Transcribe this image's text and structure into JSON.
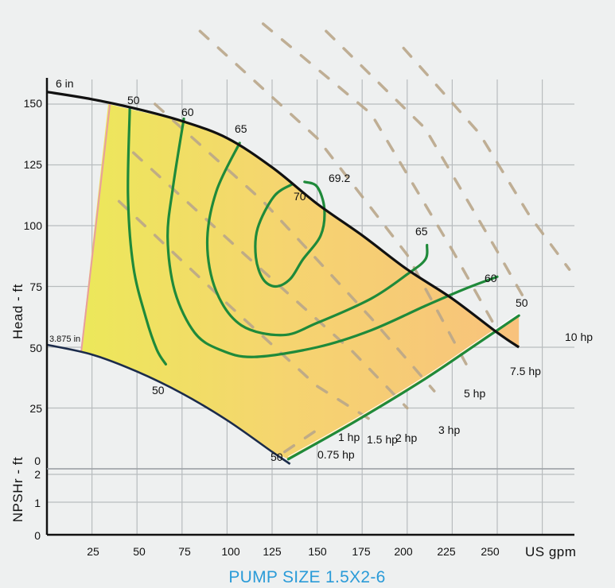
{
  "chart_data": {
    "type": "line",
    "title": "PUMP SIZE 1.5X2-6",
    "xlabel": "US gpm",
    "ylabel": "Head - ft",
    "ylabel2": "NPSHr - ft",
    "xlim": [
      0,
      280
    ],
    "ylim": [
      0,
      160
    ],
    "npsh_ylim": [
      0,
      2
    ],
    "grid": true,
    "x_ticks": [
      "25",
      "50",
      "75",
      "100",
      "125",
      "150",
      "175",
      "200",
      "225",
      "250"
    ],
    "y_ticks": [
      "150",
      "125",
      "100",
      "75",
      "50",
      "25",
      "0"
    ],
    "npsh_ticks": [
      "2",
      "1",
      "0"
    ],
    "colors": {
      "impeller_curve": "#111111",
      "efficiency": "#1f8a3a",
      "horsepower": "#b9a68a",
      "grid": "#b8bcbe",
      "fill_left": "#ece85a",
      "fill_right": "#f8c27c",
      "title": "#2a9bd8"
    },
    "impeller_curves": [
      {
        "name": "6 in",
        "points": [
          [
            0,
            155
          ],
          [
            25,
            152
          ],
          [
            50,
            148
          ],
          [
            75,
            143
          ],
          [
            100,
            136
          ],
          [
            125,
            124
          ],
          [
            150,
            109
          ],
          [
            175,
            96
          ],
          [
            200,
            82
          ],
          [
            225,
            70
          ],
          [
            250,
            56
          ],
          [
            262,
            50
          ]
        ]
      },
      {
        "name": "3.875 in",
        "points": [
          [
            0,
            51
          ],
          [
            25,
            47
          ],
          [
            50,
            40
          ],
          [
            75,
            31
          ],
          [
            100,
            20
          ],
          [
            125,
            7
          ],
          [
            135,
            2
          ]
        ]
      }
    ],
    "efficiency_contours": [
      {
        "name": "50",
        "points": [
          [
            46,
            148
          ],
          [
            45,
            112
          ],
          [
            48,
            83
          ],
          [
            55,
            62
          ],
          [
            61,
            49
          ],
          [
            66,
            43
          ]
        ]
      },
      {
        "name": "50",
        "points": [
          [
            134,
            4
          ],
          [
            170,
            19
          ],
          [
            210,
            37
          ],
          [
            240,
            52
          ],
          [
            262,
            63
          ]
        ]
      },
      {
        "name": "60",
        "points": [
          [
            76,
            144
          ],
          [
            70,
            116
          ],
          [
            67,
            95
          ],
          [
            71,
            73
          ],
          [
            82,
            56
          ],
          [
            96,
            49
          ],
          [
            115,
            46
          ],
          [
            150,
            50
          ],
          [
            180,
            57
          ],
          [
            210,
            67
          ],
          [
            232,
            74
          ],
          [
            250,
            79
          ]
        ]
      },
      {
        "name": "65",
        "points": [
          [
            107,
            134
          ],
          [
            94,
            114
          ],
          [
            89,
            93
          ],
          [
            94,
            73
          ],
          [
            108,
            59
          ],
          [
            131,
            55
          ],
          [
            150,
            60
          ],
          [
            180,
            70
          ],
          [
            200,
            80
          ],
          [
            210,
            86
          ],
          [
            211,
            92
          ]
        ]
      },
      {
        "name": "70",
        "points": [
          [
            136,
            117
          ],
          [
            126,
            112
          ],
          [
            117,
            99
          ],
          [
            116,
            87
          ],
          [
            120,
            78
          ],
          [
            127,
            75
          ],
          [
            135,
            78
          ],
          [
            142,
            86
          ],
          [
            152,
            96
          ],
          [
            154,
            107
          ],
          [
            150,
            116
          ],
          [
            143,
            118
          ]
        ]
      }
    ],
    "horsepower_lines": [
      {
        "name": "0.75 hp",
        "points": [
          [
            132,
            7
          ],
          [
            150,
            16
          ]
        ]
      },
      {
        "name": "1 hp",
        "points": [
          [
            40,
            110
          ],
          [
            100,
            68
          ],
          [
            150,
            34
          ],
          [
            180,
            20
          ]
        ]
      },
      {
        "name": "1.5 hp",
        "points": [
          [
            48,
            130
          ],
          [
            110,
            88
          ],
          [
            170,
            48
          ],
          [
            200,
            25
          ]
        ]
      },
      {
        "name": "2 hp",
        "points": [
          [
            60,
            150
          ],
          [
            120,
            110
          ],
          [
            180,
            62
          ],
          [
            215,
            32
          ]
        ]
      },
      {
        "name": "3 hp",
        "points": [
          [
            85,
            180
          ],
          [
            150,
            136
          ],
          [
            200,
            88
          ],
          [
            235,
            40
          ]
        ]
      },
      {
        "name": "5 hp",
        "points": [
          [
            120,
            183
          ],
          [
            180,
            146
          ],
          [
            225,
            90
          ],
          [
            250,
            57
          ]
        ]
      },
      {
        "name": "7.5 hp",
        "points": [
          [
            155,
            180
          ],
          [
            210,
            140
          ],
          [
            248,
            92
          ],
          [
            265,
            70
          ]
        ]
      },
      {
        "name": "10 hp",
        "points": [
          [
            198,
            173
          ],
          [
            240,
            138
          ],
          [
            268,
            104
          ],
          [
            290,
            82
          ]
        ]
      }
    ],
    "labels": {
      "impeller_top": "6 in",
      "impeller_bottom": "3.875 in",
      "on_curve": [
        "50",
        "60",
        "65",
        "69.2",
        "65",
        "60",
        "50"
      ],
      "contour_70": "70",
      "low_50": "50",
      "bottom_50": "50",
      "hp": [
        "10 hp",
        "7.5 hp",
        "5 hp",
        "3 hp",
        "2 hp",
        "1.5 hp",
        "1 hp",
        "0.75 hp"
      ]
    }
  }
}
